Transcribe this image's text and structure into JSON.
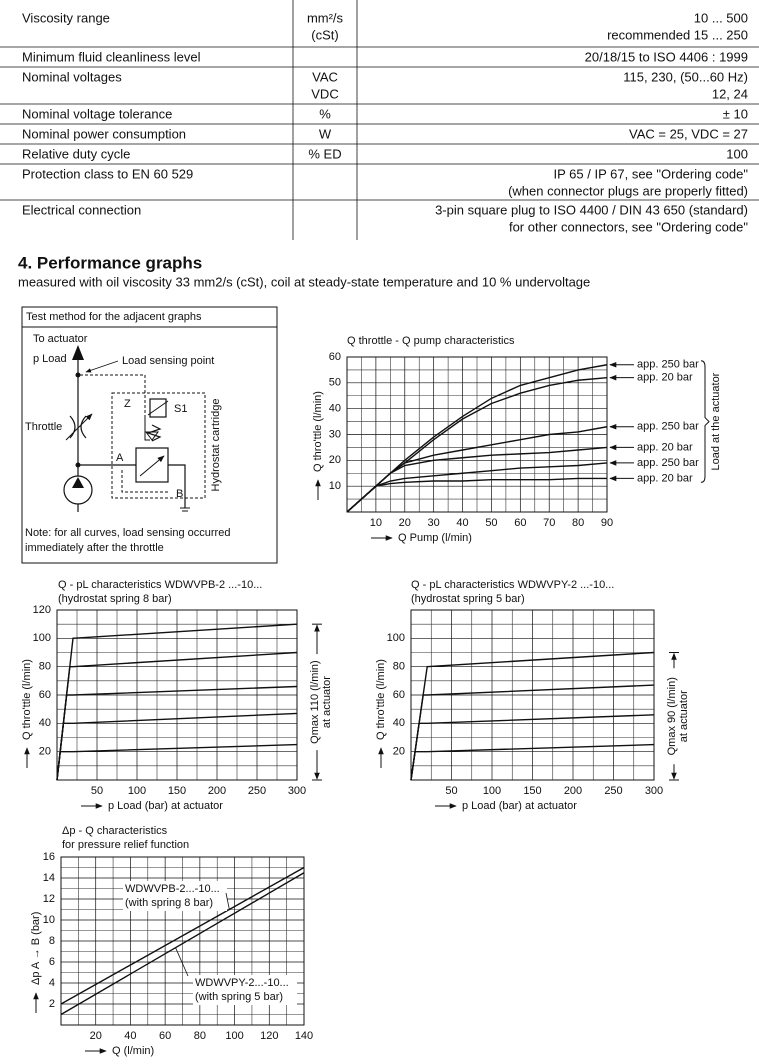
{
  "table": {
    "rows": [
      {
        "parameter": "Viscosity range",
        "unit": [
          "mm²/s",
          "(cSt)"
        ],
        "value": [
          "10 ... 500",
          "recommended 15 ... 250"
        ]
      },
      {
        "parameter": "Minimum fluid cleanliness level",
        "value": [
          "20/18/15 to ISO 4406 : 1999"
        ]
      },
      {
        "parameter": "Nominal voltages",
        "unit": [
          "VAC",
          "VDC"
        ],
        "value": [
          "115, 230, (50...60 Hz)",
          "12, 24"
        ]
      },
      {
        "parameter": "Nominal voltage tolerance",
        "unit": [
          "%"
        ],
        "value": [
          "± 10"
        ]
      },
      {
        "parameter": "Nominal power consumption",
        "unit": [
          "W"
        ],
        "value": [
          "VAC = 25, VDC = 27"
        ]
      },
      {
        "parameter": "Relative duty cycle",
        "unit": [
          "% ED"
        ],
        "value": [
          "100"
        ]
      },
      {
        "parameter": "Protection class to EN 60 529",
        "value": [
          "IP 65 / IP 67, see \"Ordering code\"",
          "(when connector plugs are properly fitted)"
        ]
      },
      {
        "parameter": "Electrical connection",
        "value": [
          "3-pin square plug to ISO 4400 / DIN 43 650 (standard)",
          "for other connectors, see \"Ordering code\""
        ]
      }
    ]
  },
  "section": {
    "title": "4.  Performance graphs",
    "subtitle": "measured with oil viscosity 33 mm2/s (cSt), coil at steady-state temperature and 10 % undervoltage"
  },
  "test_method": {
    "title": "Test method for the adjacent graphs",
    "labels": {
      "to_actuator": "To actuator",
      "p_load": "p Load",
      "load_sensing_point": "Load sensing point",
      "throttle": "Throttle",
      "z": "Z",
      "s1": "S1",
      "a": "A",
      "b": "B",
      "hydrostat_cartridge": "Hydrostat cartridge"
    },
    "note": [
      "Note: for all curves, load sensing occurred",
      "immediately after the throttle"
    ]
  },
  "chart_data": [
    {
      "type": "line",
      "title": "Q throttle - Q pump characteristics",
      "xlabel": "Q Pump (l/min)",
      "ylabel": "Q thro'ttle (l/min)",
      "x": [
        0,
        10,
        15,
        20,
        30,
        40,
        50,
        60,
        70,
        80,
        90
      ],
      "xlim": [
        0,
        90
      ],
      "xticks": [
        10,
        20,
        30,
        40,
        50,
        60,
        70,
        80,
        90
      ],
      "ylim": [
        0,
        60
      ],
      "yticks": [
        10,
        20,
        30,
        40,
        50,
        60
      ],
      "grid": true,
      "minor_grid": true,
      "annotation": [
        "Load at the actuator"
      ],
      "series": [
        {
          "name": "app. 250 bar",
          "color": "#111111",
          "values": [
            0,
            10,
            15,
            20,
            29,
            37,
            44,
            49,
            52,
            55,
            57
          ]
        },
        {
          "name": "app.   20 bar",
          "color": "#111111",
          "values": [
            0,
            10,
            15,
            19,
            28,
            36,
            42,
            46,
            49,
            51,
            52
          ]
        },
        {
          "name": "app. 250 bar",
          "color": "#111111",
          "values": [
            0,
            10,
            15,
            19,
            22,
            24,
            26,
            28,
            30,
            31,
            33
          ]
        },
        {
          "name": "app.   20 bar",
          "color": "#111111",
          "values": [
            0,
            10,
            15,
            18,
            20,
            21,
            22,
            22.5,
            23,
            24,
            25
          ]
        },
        {
          "name": "app. 250 bar",
          "color": "#111111",
          "values": [
            0,
            10,
            12,
            13,
            14,
            15,
            16,
            17,
            17.5,
            18,
            19
          ]
        },
        {
          "name": "app.   20 bar",
          "color": "#111111",
          "values": [
            0,
            10,
            11,
            11.5,
            12,
            12,
            12.5,
            12.5,
            12.5,
            13,
            13
          ]
        }
      ]
    },
    {
      "type": "line",
      "title": "Q - pL characteristics WDWVPB-2 ...-10...",
      "subtitle": "(hydrostat spring 8 bar)",
      "xlabel": "p Load (bar) at actuator",
      "ylabel": "Q thro'ttle (l/min)",
      "x": [
        0,
        4,
        8,
        12,
        16,
        20,
        300
      ],
      "xlim": [
        0,
        300
      ],
      "xticks": [
        50,
        100,
        150,
        200,
        250,
        300
      ],
      "ylim": [
        0,
        120
      ],
      "yticks": [
        20,
        40,
        60,
        80,
        100,
        120
      ],
      "grid": true,
      "minor_grid": true,
      "annotation": [
        "Qmax 110 (l/min)",
        "at actuator"
      ],
      "series": [
        {
          "color": "#111111",
          "values": [
            0,
            20,
            40,
            60,
            80,
            100,
            110
          ]
        },
        {
          "color": "#111111",
          "values": [
            0,
            20,
            40,
            60,
            80,
            80,
            90
          ]
        },
        {
          "color": "#111111",
          "values": [
            0,
            20,
            40,
            60,
            60,
            60,
            66
          ]
        },
        {
          "color": "#111111",
          "values": [
            0,
            20,
            40,
            40,
            40,
            40,
            47
          ]
        },
        {
          "color": "#111111",
          "values": [
            0,
            20,
            20,
            20,
            20,
            20,
            25
          ]
        }
      ]
    },
    {
      "type": "line",
      "title": "Q - pL characteristics WDWVPY-2 ...-10...",
      "subtitle": "(hydrostat spring 5 bar)",
      "xlabel": "p Load (bar) at actuator",
      "ylabel": "Q thro'ttle (l/min)",
      "x": [
        0,
        5,
        10,
        15,
        20,
        300
      ],
      "xlim": [
        0,
        300
      ],
      "xticks": [
        50,
        100,
        150,
        200,
        250,
        300
      ],
      "ylim": [
        0,
        120
      ],
      "yticks": [
        20,
        40,
        60,
        80,
        100
      ],
      "grid": true,
      "minor_grid": true,
      "annotation": [
        "Qmax 90 (l/min)",
        "at actuator"
      ],
      "series": [
        {
          "color": "#111111",
          "values": [
            0,
            20,
            40,
            60,
            80,
            90
          ]
        },
        {
          "color": "#111111",
          "values": [
            0,
            20,
            40,
            60,
            60,
            67
          ]
        },
        {
          "color": "#111111",
          "values": [
            0,
            20,
            40,
            40,
            40,
            46
          ]
        },
        {
          "color": "#111111",
          "values": [
            0,
            20,
            20,
            20,
            20,
            25
          ]
        }
      ]
    },
    {
      "type": "line",
      "title": "Δp - Q characteristics",
      "subtitle": "for pressure relief function",
      "xlabel": "Q (l/min)",
      "ylabel": "Δp A → B (bar)",
      "x": [
        0,
        140
      ],
      "xlim": [
        0,
        140
      ],
      "xticks": [
        20,
        40,
        60,
        80,
        100,
        120,
        140
      ],
      "ylim": [
        0,
        16
      ],
      "yticks": [
        2,
        4,
        6,
        8,
        10,
        12,
        14,
        16
      ],
      "grid": true,
      "minor_grid": true,
      "series": [
        {
          "name": "WDWVPB-2...-10...",
          "subname": "(with spring 8 bar)",
          "color": "#111111",
          "values": [
            2,
            15
          ]
        },
        {
          "name": "WDWVPY-2...-10...",
          "subname": "(with spring 5 bar)",
          "color": "#111111",
          "values": [
            1,
            14.5
          ]
        }
      ]
    }
  ]
}
